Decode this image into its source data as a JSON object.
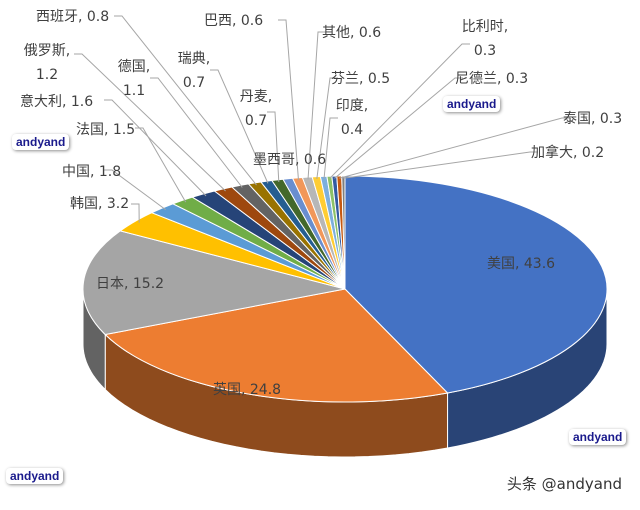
{
  "chart_data": {
    "type": "pie",
    "style": "3d",
    "title": "",
    "start_angle": "12 o'clock, clockwise",
    "categories": [
      "美国",
      "英国",
      "日本",
      "韩国",
      "中国",
      "法国",
      "意大利",
      "俄罗斯",
      "德国",
      "西班牙",
      "瑞典",
      "丹麦",
      "墨西哥",
      "巴西",
      "其他",
      "芬兰",
      "印度",
      "比利时",
      "尼德兰",
      "泰国",
      "加拿大"
    ],
    "values": [
      43.6,
      24.8,
      15.2,
      3.2,
      1.8,
      1.5,
      1.6,
      1.2,
      1.1,
      0.8,
      0.7,
      0.7,
      0.6,
      0.6,
      0.6,
      0.5,
      0.4,
      0.3,
      0.3,
      0.3,
      0.2
    ],
    "colors": [
      "#4472c4",
      "#ed7d31",
      "#a5a5a5",
      "#ffc000",
      "#5b9bd5",
      "#70ad47",
      "#264478",
      "#9e480e",
      "#636363",
      "#997300",
      "#255e91",
      "#43682b",
      "#698ed0",
      "#f1975a",
      "#b7b7b7",
      "#ffcd33",
      "#7cafdd",
      "#8cc168",
      "#335aa1",
      "#c65911",
      "#7f7f7f"
    ],
    "data_labels": [
      "美国, 43.6",
      "英国, 24.8",
      "日本, 15.2",
      "韩国, 3.2",
      "中国, 1.8",
      "法国, 1.5",
      "意大利, 1.6",
      "俄罗斯, 1.2",
      "德国, 1.1",
      "西班牙, 0.8",
      "瑞典, 0.7",
      "丹麦, 0.7",
      "墨西哥, 0.6",
      "巴西, 0.6",
      "其他, 0.6",
      "芬兰, 0.5",
      "印度, 0.4",
      "比利时, 0.3",
      "尼德兰, 0.3",
      "泰国, 0.3",
      "加拿大, 0.2"
    ],
    "legend": "none"
  },
  "labels": {
    "us": "美国, 43.6",
    "uk": "英国, 24.8",
    "jp": "日本, 15.2",
    "kr": "韩国, 3.2",
    "cn": "中国, 1.8",
    "fr": "法国, 1.5",
    "it": "意大利, 1.6",
    "ru_1": "俄罗斯,",
    "ru_2": "1.2",
    "de_1": "德国,",
    "de_2": "1.1",
    "es": "西班牙, 0.8",
    "se_1": "瑞典,",
    "se_2": "0.7",
    "dk_1": "丹麦,",
    "dk_2": "0.7",
    "mx": "墨西哥, 0.6",
    "br": "巴西, 0.6",
    "other": "其他, 0.6",
    "fi": "芬兰, 0.5",
    "in_1": "印度,",
    "in_2": "0.4",
    "be_1": "比利时,",
    "be_2": "0.3",
    "nl": "尼德兰, 0.3",
    "th": "泰国, 0.3",
    "ca": "加拿大, 0.2"
  },
  "watermarks": [
    "andyand",
    "andyand",
    "andyand",
    "andyand"
  ],
  "credit": "头条 @andyand"
}
